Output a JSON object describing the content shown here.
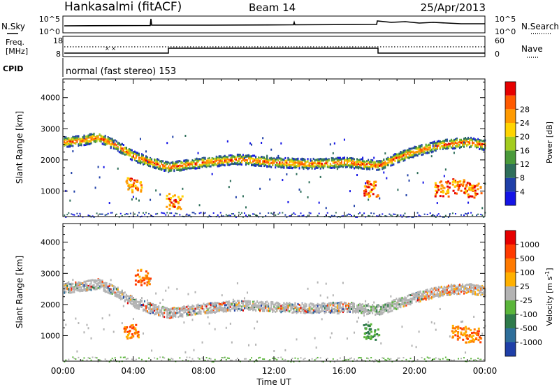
{
  "header": {
    "station": "Hankasalmi (fitACF)",
    "beam": "Beam 14",
    "date": "25/Apr/2013"
  },
  "noise_panel": {
    "left_label": "N.Sky",
    "right_label": "N.Search",
    "left_ticks": [
      "10^5",
      "10^0"
    ],
    "right_ticks": [
      "10^5",
      "10^0"
    ]
  },
  "freq_panel": {
    "left_label_1": "Freq.",
    "left_label_2": "[MHz]",
    "left_ticks": [
      "18",
      "8"
    ],
    "right_label": "Nave",
    "right_ticks": [
      "60",
      "0"
    ]
  },
  "cpid_panel": {
    "label": "CPID",
    "program": "normal (fast stereo) 153"
  },
  "axes": {
    "xlabel": "Time UT",
    "ylabel": "Slant Range [km]",
    "x_ticks": [
      "00:00",
      "04:00",
      "08:00",
      "12:00",
      "16:00",
      "20:00",
      "00:00"
    ],
    "y_ticks": [
      "1000",
      "2000",
      "3000",
      "4000"
    ]
  },
  "colorbars": {
    "power": {
      "label": "Power [dB]",
      "ticks": [
        "4",
        "8",
        "12",
        "16",
        "20",
        "24",
        "28"
      ],
      "colors": [
        "#1414e6",
        "#1f3fa8",
        "#2e6e5a",
        "#4a9a3a",
        "#a3cc1e",
        "#ffd400",
        "#ff9a00",
        "#ff5a00",
        "#e60000"
      ]
    },
    "velocity": {
      "label": "Velocity [m s",
      "label_sup": "-1",
      "label_end": "]",
      "ticks": [
        "1000",
        "500",
        "100",
        "25",
        "-25",
        "-100",
        "-500",
        "-1000"
      ],
      "colors": [
        "#1f3fa8",
        "#2e6e9a",
        "#2e7a4a",
        "#5ab53a",
        "#b3b3b3",
        "#ffb000",
        "#ff7a00",
        "#ff3a00",
        "#e60000"
      ]
    }
  },
  "chart_data": [
    {
      "type": "heatmap",
      "title": "Power",
      "xlabel": "Time UT",
      "ylabel": "Slant Range [km]",
      "xlim": [
        0,
        24
      ],
      "ylim": [
        180,
        4600
      ],
      "series": [
        {
          "name": "band",
          "x": [
            0,
            1,
            2,
            3,
            4,
            5,
            6,
            8,
            10,
            12,
            14,
            16,
            17,
            18,
            19,
            20,
            21,
            22,
            23,
            24
          ],
          "y": [
            2600,
            2650,
            2750,
            2500,
            2150,
            1950,
            1800,
            1950,
            2050,
            1950,
            1900,
            1950,
            1900,
            1850,
            2100,
            2300,
            2450,
            2550,
            2600,
            2500
          ]
        },
        {
          "name": "spots",
          "x": [
            21.5,
            22.5,
            23.3,
            4.0,
            6.3,
            17.5
          ],
          "y": [
            1100,
            1200,
            1050,
            1200,
            700,
            1100
          ]
        }
      ]
    },
    {
      "type": "heatmap",
      "title": "Velocity",
      "xlabel": "Time UT",
      "ylabel": "Slant Range [km]",
      "xlim": [
        0,
        24
      ],
      "ylim": [
        180,
        4600
      ],
      "series": [
        {
          "name": "band",
          "x": [
            0,
            1,
            2,
            3,
            4,
            5,
            6,
            8,
            10,
            12,
            14,
            16,
            17,
            18,
            19,
            20,
            21,
            22,
            23,
            24
          ],
          "y": [
            2550,
            2600,
            2700,
            2450,
            2100,
            1900,
            1750,
            1900,
            2000,
            1950,
            1900,
            1950,
            1900,
            1850,
            2050,
            2250,
            2400,
            2500,
            2550,
            2450
          ]
        },
        {
          "name": "spots",
          "x": [
            3.8,
            4.5,
            17.5,
            22.5,
            23.3
          ],
          "y": [
            1150,
            2900,
            1150,
            1150,
            1050
          ]
        }
      ]
    }
  ]
}
